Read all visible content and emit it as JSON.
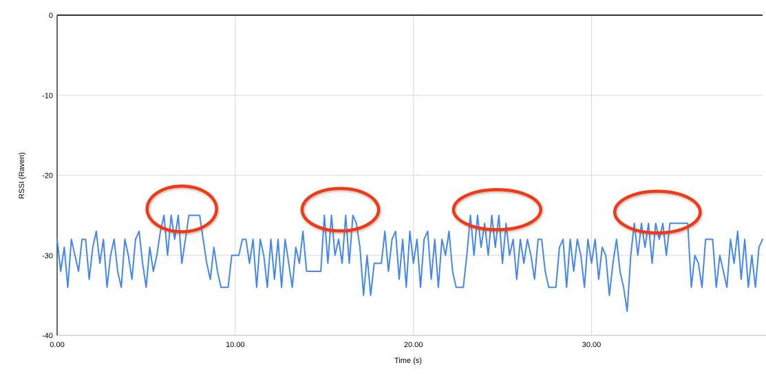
{
  "page": {
    "background": "#ffffff"
  },
  "chart_data": {
    "type": "line",
    "title": "",
    "xlabel": "Time (s)",
    "ylabel": "RSSI (Raven)",
    "xlim": [
      0,
      39.6
    ],
    "ylim": [
      -40,
      0
    ],
    "grid": true,
    "legend_position": "none",
    "axis_colors": {
      "frame": "#333333",
      "grid": "#d9d9d9",
      "baseline": "#b7b7b7",
      "text": "#000000"
    },
    "x_ticks": [
      {
        "t": 0,
        "label": "0.00"
      },
      {
        "t": 10,
        "label": "10.00"
      },
      {
        "t": 20,
        "label": "20.00"
      },
      {
        "t": 30,
        "label": "30.00"
      }
    ],
    "y_ticks": [
      {
        "v": 0,
        "label": "0"
      },
      {
        "v": -10,
        "label": "-10"
      },
      {
        "v": -20,
        "label": "-20"
      },
      {
        "v": -30,
        "label": "-30"
      },
      {
        "v": -40,
        "label": "-40"
      }
    ],
    "series": [
      {
        "name": "RSSI (Raven)",
        "color": "#4285f4",
        "line_width": 2,
        "x_start": 0,
        "x_step": 0.2,
        "values": [
          -28,
          -32,
          -29,
          -34,
          -28,
          -30,
          -32,
          -28,
          -28,
          -33,
          -29,
          -27,
          -31,
          -28,
          -34,
          -30,
          -28,
          -32,
          -34,
          -28,
          -30,
          -33,
          -28,
          -27,
          -31,
          -34,
          -29,
          -32,
          -30,
          -27,
          -25,
          -30,
          -25,
          -28,
          -25,
          -31,
          -28,
          -25,
          -25,
          -25,
          -25,
          -28,
          -31,
          -33,
          -29,
          -32,
          -34,
          -34,
          -34,
          -30,
          -30,
          -30,
          -28,
          -28,
          -31,
          -28,
          -34,
          -28,
          -30,
          -34,
          -28,
          -33,
          -28,
          -34,
          -28,
          -31,
          -34,
          -29,
          -31,
          -27,
          -32,
          -32,
          -32,
          -32,
          -32,
          -25,
          -31,
          -25,
          -30,
          -28,
          -31,
          -25,
          -31,
          -25,
          -26,
          -29,
          -35,
          -30,
          -35,
          -31,
          -31,
          -31,
          -27,
          -32,
          -28,
          -27,
          -33,
          -28,
          -34,
          -27,
          -31,
          -28,
          -34,
          -28,
          -27,
          -33,
          -28,
          -34,
          -28,
          -30,
          -27,
          -32,
          -34,
          -34,
          -34,
          -30,
          -25,
          -30,
          -25,
          -29,
          -26,
          -30,
          -25,
          -29,
          -25,
          -31,
          -26,
          -30,
          -28,
          -33,
          -28,
          -31,
          -28,
          -30,
          -33,
          -28,
          -28,
          -32,
          -34,
          -34,
          -34,
          -29,
          -28,
          -34,
          -28,
          -32,
          -28,
          -30,
          -34,
          -28,
          -31,
          -28,
          -33,
          -29,
          -30,
          -35,
          -31,
          -28,
          -32,
          -34,
          -37,
          -30,
          -26,
          -30,
          -26,
          -29,
          -26,
          -31,
          -26,
          -28,
          -26,
          -30,
          -26,
          -26,
          -26,
          -26,
          -26,
          -26,
          -34,
          -30,
          -31,
          -34,
          -28,
          -28,
          -28,
          -34,
          -30,
          -32,
          -34,
          -28,
          -31,
          -27,
          -33,
          -28,
          -34,
          -30,
          -34,
          -29,
          -28
        ]
      }
    ],
    "annotations": {
      "description": "four hand-drawn red-orange ellipses circling the periodic spike bursts",
      "color": "#f23917",
      "stroke_width": 4.5,
      "ellipses": [
        {
          "t": 7.0,
          "rssi": -24.2,
          "rt": 1.95,
          "rv": 2.85
        },
        {
          "t": 15.9,
          "rssi": -24.3,
          "rt": 2.15,
          "rv": 2.65
        },
        {
          "t": 24.7,
          "rssi": -24.3,
          "rt": 2.45,
          "rv": 2.5
        },
        {
          "t": 33.7,
          "rssi": -24.6,
          "rt": 2.4,
          "rv": 2.6
        }
      ]
    }
  }
}
